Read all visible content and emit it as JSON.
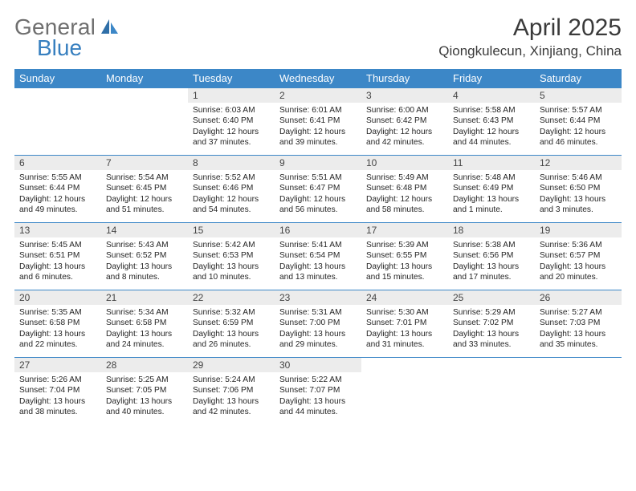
{
  "brand": {
    "general": "General",
    "blue": "Blue"
  },
  "header": {
    "month_title": "April 2025",
    "location": "Qiongkulecun, Xinjiang, China"
  },
  "palette": {
    "header_bg": "#3c87c7",
    "header_fg": "#ffffff",
    "daynum_bg": "#ececec",
    "row_border": "#3c87c7",
    "logo_blue": "#377fbf",
    "logo_gray": "#6f6f6f",
    "text": "#252525"
  },
  "weekdays": [
    "Sunday",
    "Monday",
    "Tuesday",
    "Wednesday",
    "Thursday",
    "Friday",
    "Saturday"
  ],
  "cells": [
    [
      null,
      null,
      {
        "n": "1",
        "sunrise": "Sunrise: 6:03 AM",
        "sunset": "Sunset: 6:40 PM",
        "day1": "Daylight: 12 hours",
        "day2": "and 37 minutes."
      },
      {
        "n": "2",
        "sunrise": "Sunrise: 6:01 AM",
        "sunset": "Sunset: 6:41 PM",
        "day1": "Daylight: 12 hours",
        "day2": "and 39 minutes."
      },
      {
        "n": "3",
        "sunrise": "Sunrise: 6:00 AM",
        "sunset": "Sunset: 6:42 PM",
        "day1": "Daylight: 12 hours",
        "day2": "and 42 minutes."
      },
      {
        "n": "4",
        "sunrise": "Sunrise: 5:58 AM",
        "sunset": "Sunset: 6:43 PM",
        "day1": "Daylight: 12 hours",
        "day2": "and 44 minutes."
      },
      {
        "n": "5",
        "sunrise": "Sunrise: 5:57 AM",
        "sunset": "Sunset: 6:44 PM",
        "day1": "Daylight: 12 hours",
        "day2": "and 46 minutes."
      }
    ],
    [
      {
        "n": "6",
        "sunrise": "Sunrise: 5:55 AM",
        "sunset": "Sunset: 6:44 PM",
        "day1": "Daylight: 12 hours",
        "day2": "and 49 minutes."
      },
      {
        "n": "7",
        "sunrise": "Sunrise: 5:54 AM",
        "sunset": "Sunset: 6:45 PM",
        "day1": "Daylight: 12 hours",
        "day2": "and 51 minutes."
      },
      {
        "n": "8",
        "sunrise": "Sunrise: 5:52 AM",
        "sunset": "Sunset: 6:46 PM",
        "day1": "Daylight: 12 hours",
        "day2": "and 54 minutes."
      },
      {
        "n": "9",
        "sunrise": "Sunrise: 5:51 AM",
        "sunset": "Sunset: 6:47 PM",
        "day1": "Daylight: 12 hours",
        "day2": "and 56 minutes."
      },
      {
        "n": "10",
        "sunrise": "Sunrise: 5:49 AM",
        "sunset": "Sunset: 6:48 PM",
        "day1": "Daylight: 12 hours",
        "day2": "and 58 minutes."
      },
      {
        "n": "11",
        "sunrise": "Sunrise: 5:48 AM",
        "sunset": "Sunset: 6:49 PM",
        "day1": "Daylight: 13 hours",
        "day2": "and 1 minute."
      },
      {
        "n": "12",
        "sunrise": "Sunrise: 5:46 AM",
        "sunset": "Sunset: 6:50 PM",
        "day1": "Daylight: 13 hours",
        "day2": "and 3 minutes."
      }
    ],
    [
      {
        "n": "13",
        "sunrise": "Sunrise: 5:45 AM",
        "sunset": "Sunset: 6:51 PM",
        "day1": "Daylight: 13 hours",
        "day2": "and 6 minutes."
      },
      {
        "n": "14",
        "sunrise": "Sunrise: 5:43 AM",
        "sunset": "Sunset: 6:52 PM",
        "day1": "Daylight: 13 hours",
        "day2": "and 8 minutes."
      },
      {
        "n": "15",
        "sunrise": "Sunrise: 5:42 AM",
        "sunset": "Sunset: 6:53 PM",
        "day1": "Daylight: 13 hours",
        "day2": "and 10 minutes."
      },
      {
        "n": "16",
        "sunrise": "Sunrise: 5:41 AM",
        "sunset": "Sunset: 6:54 PM",
        "day1": "Daylight: 13 hours",
        "day2": "and 13 minutes."
      },
      {
        "n": "17",
        "sunrise": "Sunrise: 5:39 AM",
        "sunset": "Sunset: 6:55 PM",
        "day1": "Daylight: 13 hours",
        "day2": "and 15 minutes."
      },
      {
        "n": "18",
        "sunrise": "Sunrise: 5:38 AM",
        "sunset": "Sunset: 6:56 PM",
        "day1": "Daylight: 13 hours",
        "day2": "and 17 minutes."
      },
      {
        "n": "19",
        "sunrise": "Sunrise: 5:36 AM",
        "sunset": "Sunset: 6:57 PM",
        "day1": "Daylight: 13 hours",
        "day2": "and 20 minutes."
      }
    ],
    [
      {
        "n": "20",
        "sunrise": "Sunrise: 5:35 AM",
        "sunset": "Sunset: 6:58 PM",
        "day1": "Daylight: 13 hours",
        "day2": "and 22 minutes."
      },
      {
        "n": "21",
        "sunrise": "Sunrise: 5:34 AM",
        "sunset": "Sunset: 6:58 PM",
        "day1": "Daylight: 13 hours",
        "day2": "and 24 minutes."
      },
      {
        "n": "22",
        "sunrise": "Sunrise: 5:32 AM",
        "sunset": "Sunset: 6:59 PM",
        "day1": "Daylight: 13 hours",
        "day2": "and 26 minutes."
      },
      {
        "n": "23",
        "sunrise": "Sunrise: 5:31 AM",
        "sunset": "Sunset: 7:00 PM",
        "day1": "Daylight: 13 hours",
        "day2": "and 29 minutes."
      },
      {
        "n": "24",
        "sunrise": "Sunrise: 5:30 AM",
        "sunset": "Sunset: 7:01 PM",
        "day1": "Daylight: 13 hours",
        "day2": "and 31 minutes."
      },
      {
        "n": "25",
        "sunrise": "Sunrise: 5:29 AM",
        "sunset": "Sunset: 7:02 PM",
        "day1": "Daylight: 13 hours",
        "day2": "and 33 minutes."
      },
      {
        "n": "26",
        "sunrise": "Sunrise: 5:27 AM",
        "sunset": "Sunset: 7:03 PM",
        "day1": "Daylight: 13 hours",
        "day2": "and 35 minutes."
      }
    ],
    [
      {
        "n": "27",
        "sunrise": "Sunrise: 5:26 AM",
        "sunset": "Sunset: 7:04 PM",
        "day1": "Daylight: 13 hours",
        "day2": "and 38 minutes."
      },
      {
        "n": "28",
        "sunrise": "Sunrise: 5:25 AM",
        "sunset": "Sunset: 7:05 PM",
        "day1": "Daylight: 13 hours",
        "day2": "and 40 minutes."
      },
      {
        "n": "29",
        "sunrise": "Sunrise: 5:24 AM",
        "sunset": "Sunset: 7:06 PM",
        "day1": "Daylight: 13 hours",
        "day2": "and 42 minutes."
      },
      {
        "n": "30",
        "sunrise": "Sunrise: 5:22 AM",
        "sunset": "Sunset: 7:07 PM",
        "day1": "Daylight: 13 hours",
        "day2": "and 44 minutes."
      },
      null,
      null,
      null
    ]
  ]
}
